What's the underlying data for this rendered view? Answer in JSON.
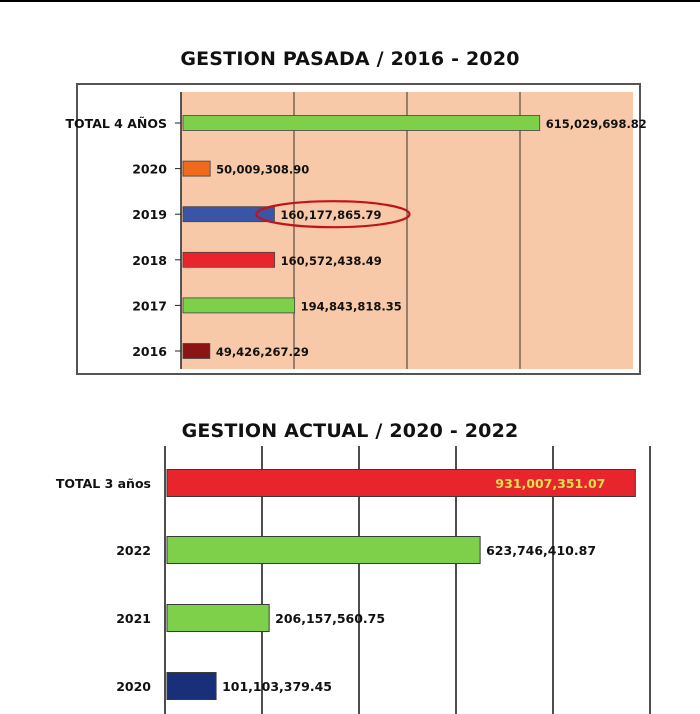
{
  "chart_data": [
    {
      "type": "bar",
      "orientation": "horizontal",
      "title": "GESTION PASADA / 2016 - 2020",
      "categories": [
        "TOTAL 4 AÑOS",
        "2020",
        "2019",
        "2018",
        "2017",
        "2016"
      ],
      "values": [
        615029698.82,
        50009308.9,
        160177865.79,
        160572438.49,
        194843818.35,
        49426267.29
      ],
      "value_labels": [
        "615,029,698.82",
        "50,009,308.90",
        "160,177,865.79",
        "160,572,438.49",
        "194,843,818.35",
        "49,426,267.29"
      ],
      "colors": [
        "#7ed04a",
        "#f06a1e",
        "#3a55a6",
        "#e8242c",
        "#7ed04a",
        "#8b1414"
      ],
      "plot_background": "#f8c9a8",
      "highlighted_category": "2019",
      "highlight_color": "#c0141c",
      "grid": true
    },
    {
      "type": "bar",
      "orientation": "horizontal",
      "title": "GESTION ACTUAL / 2020 - 2022",
      "categories": [
        "TOTAL 3 años",
        "2022",
        "2021",
        "2020"
      ],
      "values": [
        931007351.07,
        623746410.87,
        206157560.75,
        101103379.45
      ],
      "value_labels": [
        "931,007,351.07",
        "623,746,410.87",
        "206,157,560.75",
        "101,103,379.45"
      ],
      "colors": [
        "#e8242c",
        "#7ed04a",
        "#7ed04a",
        "#1a2f7a"
      ],
      "label_colors": [
        "#e0e050",
        "#111111",
        "#111111",
        "#111111"
      ],
      "plot_background": "#ffffff",
      "grid": true
    }
  ]
}
